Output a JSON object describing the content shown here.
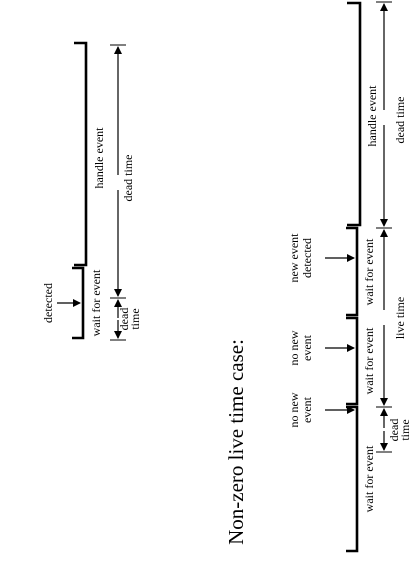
{
  "upper_diagram": {
    "event_label": "detected",
    "wait_label": "wait for event",
    "handle_label": "handle event",
    "dead_time_short": [
      "dead",
      "time"
    ],
    "dead_time_long": "dead time"
  },
  "section_title": "Non-zero live time case:",
  "lower_diagram": {
    "event_labels": [
      [
        "no new",
        "event"
      ],
      [
        "no new",
        "event"
      ],
      [
        "new event",
        "detected"
      ]
    ],
    "wait_labels": [
      "wait for event",
      "wait for event",
      "wait for event"
    ],
    "handle_label": "handle event",
    "dead_time_short": [
      "dead",
      "time"
    ],
    "live_time": "live time",
    "dead_time_long": "dead time"
  }
}
